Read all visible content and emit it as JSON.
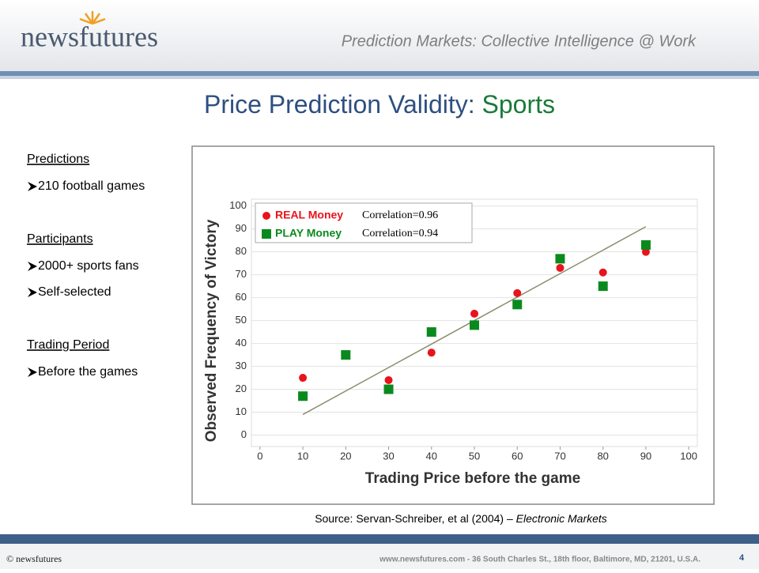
{
  "header": {
    "logo": "newsfutures",
    "tagline": "Prediction Markets: Collective Intelligence @ Work"
  },
  "title": {
    "main": "Price Prediction Validity: ",
    "highlight": "Sports"
  },
  "sidebar": [
    {
      "heading": "Predictions",
      "items": [
        "210 football games"
      ]
    },
    {
      "heading": "Participants",
      "items": [
        "2000+ sports fans",
        "Self-selected"
      ]
    },
    {
      "heading": "Trading Period",
      "items": [
        "Before the games"
      ]
    }
  ],
  "chart_data": {
    "type": "scatter",
    "xlabel": "Trading Price before the game",
    "ylabel": "Observed Frequency of Victory",
    "xlim": [
      -2,
      102
    ],
    "ylim": [
      -5,
      103
    ],
    "xticks": [
      0,
      10,
      20,
      30,
      40,
      50,
      60,
      70,
      80,
      90,
      100
    ],
    "yticks": [
      0,
      10,
      20,
      30,
      40,
      50,
      60,
      70,
      80,
      90,
      100
    ],
    "grid": true,
    "series": [
      {
        "name": "REAL Money",
        "color": "#e8141c",
        "marker": "circle",
        "annotation": "Correlation=0.96",
        "x": [
          10,
          20,
          30,
          40,
          50,
          60,
          70,
          80,
          90
        ],
        "values": [
          25,
          35,
          24,
          36,
          53,
          62,
          73,
          71,
          80
        ]
      },
      {
        "name": "PLAY Money",
        "color": "#0a8a1e",
        "marker": "square",
        "annotation": "Correlation=0.94",
        "x": [
          10,
          20,
          30,
          40,
          50,
          60,
          70,
          80,
          90
        ],
        "values": [
          17,
          35,
          20,
          45,
          48,
          57,
          77,
          65,
          83
        ]
      }
    ],
    "trend_line": {
      "x": [
        10,
        90
      ],
      "values": [
        9,
        91
      ],
      "color": "#8c8c6e"
    }
  },
  "source": {
    "text": "Source: Servan-Schreiber, et al (2004) – ",
    "italic": "Electronic Markets"
  },
  "footer": {
    "copyright": "© newsfutures",
    "address": "www.newsfutures.com  -  36 South Charles St., 18th floor, Baltimore, MD, 21201, U.S.A.",
    "page": 4
  }
}
